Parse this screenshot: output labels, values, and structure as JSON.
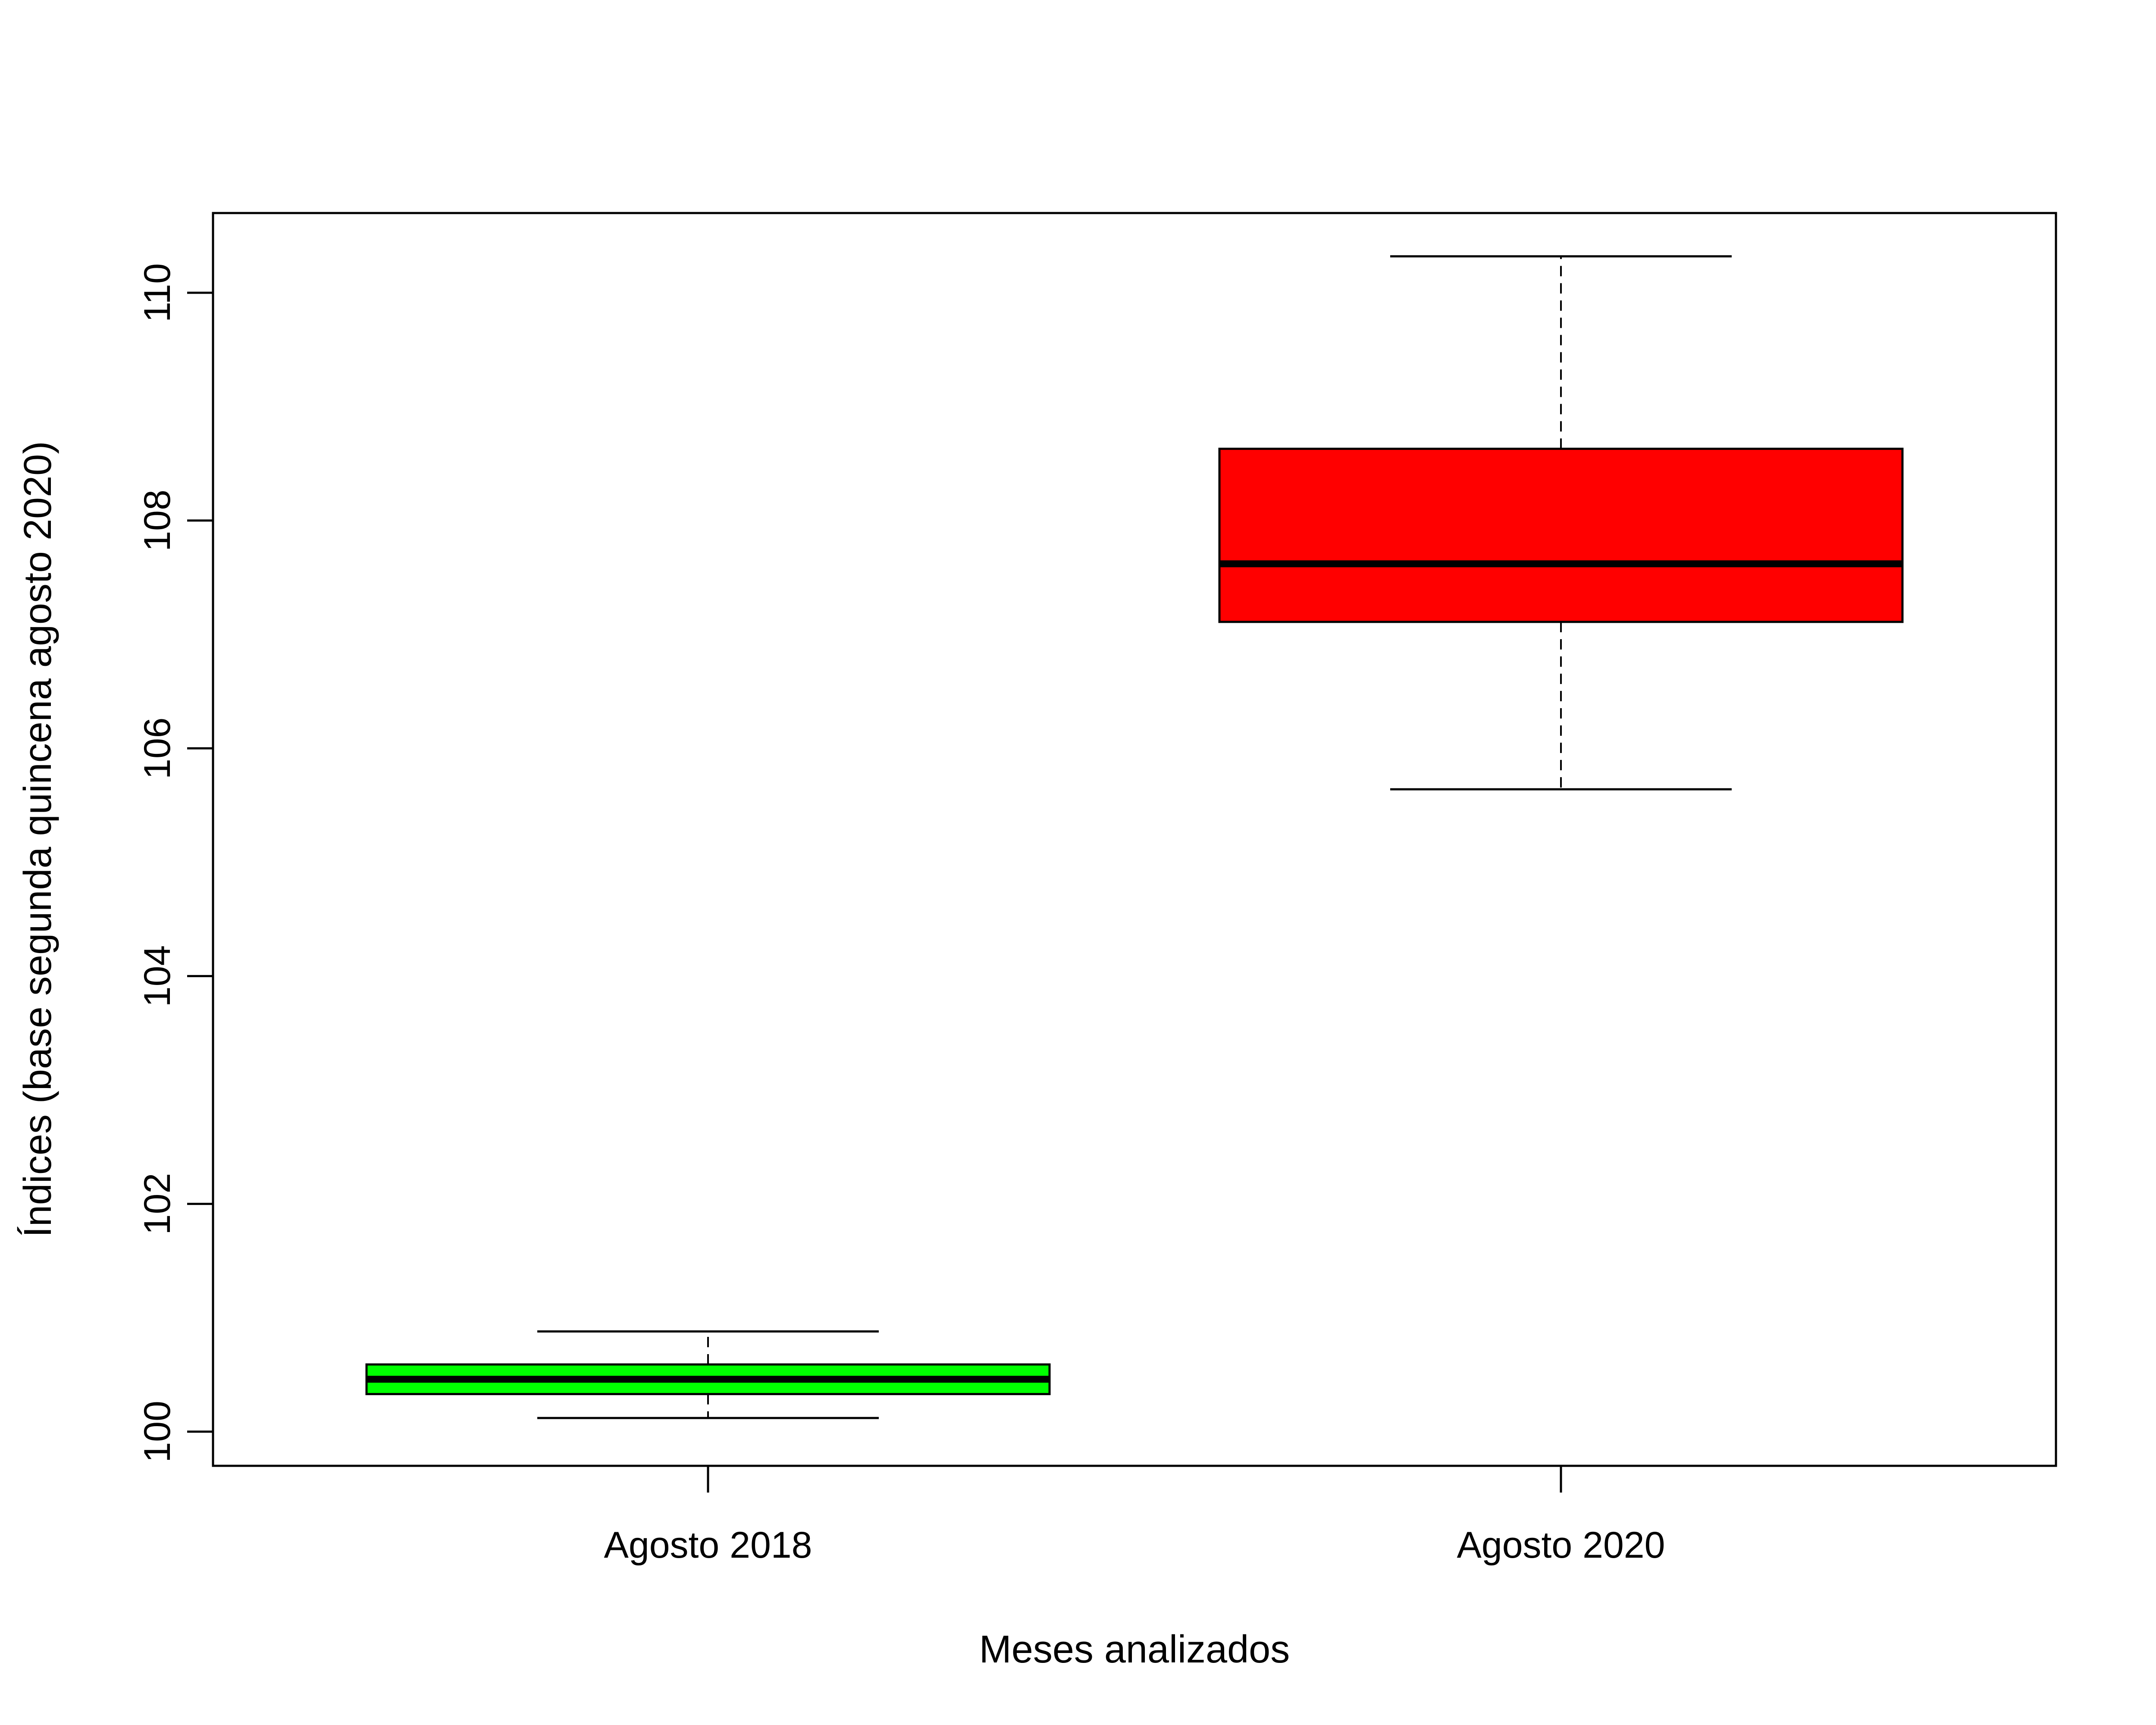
{
  "chart_data": {
    "type": "boxplot",
    "title": "",
    "xlabel": "Meses analizados",
    "ylabel": "Índices (base segunda quincena agosto 2020)",
    "ylim": [
      99.7,
      110.7
    ],
    "yticks": [
      100,
      102,
      104,
      106,
      108,
      110
    ],
    "grid": false,
    "legend": "none",
    "categories": [
      "Agosto 2018",
      "Agosto 2020"
    ],
    "boxes": [
      {
        "category": "Agosto 2018",
        "min": 100.12,
        "q1": 100.33,
        "median": 100.46,
        "q3": 100.59,
        "max": 100.88,
        "color": "#00ff00"
      },
      {
        "category": "Agosto 2020",
        "min": 105.64,
        "q1": 107.11,
        "median": 107.62,
        "q3": 108.63,
        "max": 110.32,
        "color": "#ff0000"
      }
    ]
  }
}
